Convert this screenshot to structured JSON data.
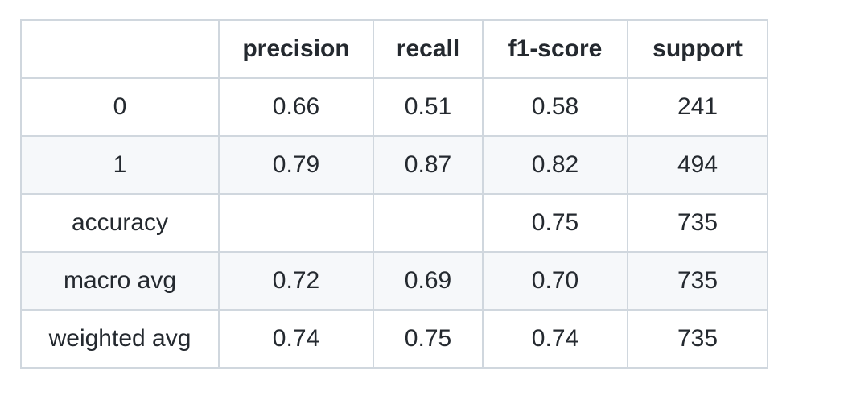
{
  "table": {
    "headers": [
      "",
      "precision",
      "recall",
      "f1-score",
      "support"
    ],
    "rows": [
      [
        "0",
        "0.66",
        "0.51",
        "0.58",
        "241"
      ],
      [
        "1",
        "0.79",
        "0.87",
        "0.82",
        "494"
      ],
      [
        "accuracy",
        "",
        "",
        "0.75",
        "735"
      ],
      [
        "macro avg",
        "0.72",
        "0.69",
        "0.70",
        "735"
      ],
      [
        "weighted avg",
        "0.74",
        "0.75",
        "0.74",
        "735"
      ]
    ]
  },
  "colors": {
    "border": "#d0d7de",
    "row_shade": "#f6f8fa",
    "text": "#24292f"
  }
}
